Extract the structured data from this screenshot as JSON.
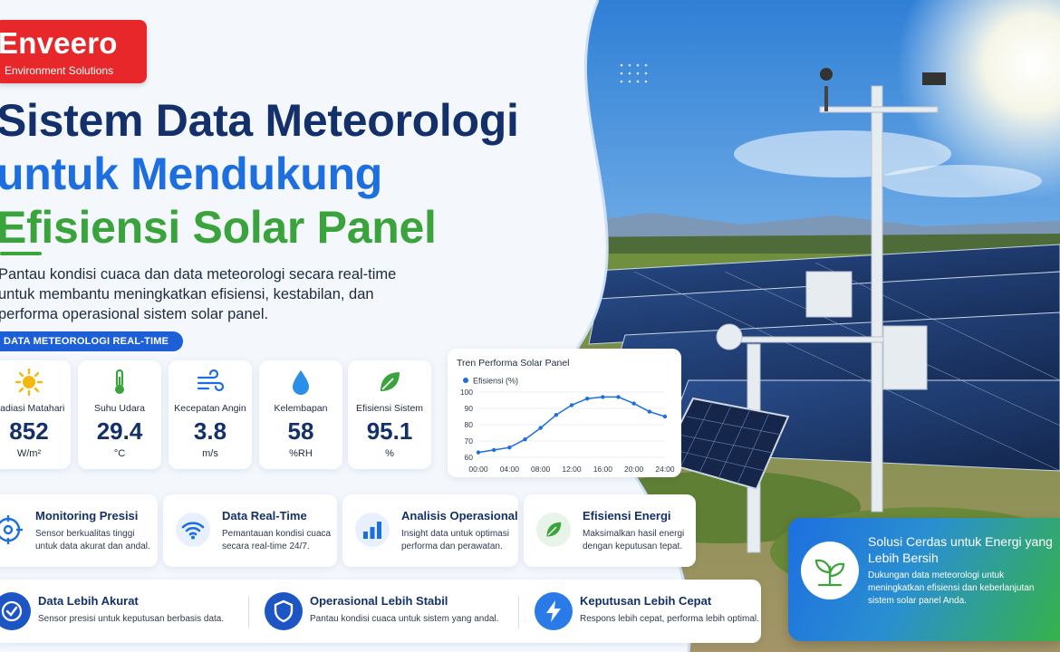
{
  "brand": {
    "name": "Enveero",
    "tagline": "Environment Solutions"
  },
  "headline": {
    "line1": "Sistem Data Meteorologi",
    "line2": "untuk Mendukung",
    "line3": "Efisiensi Solar Panel"
  },
  "description": "Pantau kondisi cuaca dan data meteorologi secara real-time untuk membantu meningkatkan efisiensi, kestabilan, dan performa operasional sistem solar panel.",
  "section_pill": "DATA METEOROLOGI REAL-TIME",
  "metrics": [
    {
      "label": "Radiasi Matahari",
      "value": "852",
      "unit": "W/m²",
      "icon": "sun-icon",
      "color": "#f5b70a"
    },
    {
      "label": "Suhu Udara",
      "value": "29.4",
      "unit": "°C",
      "icon": "thermometer-icon",
      "color": "#3aa33b"
    },
    {
      "label": "Kecepatan Angin",
      "value": "3.8",
      "unit": "m/s",
      "icon": "wind-icon",
      "color": "#1d6fe0"
    },
    {
      "label": "Kelembapan",
      "value": "58",
      "unit": "%RH",
      "icon": "droplet-icon",
      "color": "#1d8fe0"
    },
    {
      "label": "Efisiensi Sistem",
      "value": "95.1",
      "unit": "%",
      "icon": "leaf-icon",
      "color": "#3aa33b"
    }
  ],
  "chart_data": {
    "type": "line",
    "title": "Tren Performa Solar Panel",
    "legend": "Efisiensi (%)",
    "x_ticks": [
      "00:00",
      "04:00",
      "08:00",
      "12:00",
      "16:00",
      "20:00",
      "24:00"
    ],
    "y_ticks": [
      60,
      70,
      80,
      90,
      100
    ],
    "ylim": [
      60,
      100
    ],
    "xlim": [
      0,
      24
    ],
    "grid": true,
    "series": [
      {
        "color": "#1d6fe0",
        "points": [
          [
            0,
            63
          ],
          [
            2,
            64.5
          ],
          [
            4,
            66
          ],
          [
            6,
            71
          ],
          [
            8,
            78
          ],
          [
            10,
            86
          ],
          [
            12,
            92
          ],
          [
            14,
            96
          ],
          [
            16,
            97
          ],
          [
            18,
            97
          ],
          [
            20,
            93
          ],
          [
            22,
            88
          ],
          [
            24,
            85
          ]
        ]
      }
    ]
  },
  "features": [
    {
      "title": "Monitoring Presisi",
      "desc": "Sensor berkualitas tinggi untuk data akurat dan andal.",
      "icon": "target-icon"
    },
    {
      "title": "Data Real-Time",
      "desc": "Pemantauan kondisi cuaca secara real-time 24/7.",
      "icon": "wifi-icon"
    },
    {
      "title": "Analisis Operasional",
      "desc": "Insight data untuk optimasi performa dan perawatan.",
      "icon": "bar-chart-icon"
    },
    {
      "title": "Efisiensi Energi",
      "desc": "Maksimalkan hasil energi dengan keputusan tepat.",
      "icon": "leaf-icon"
    }
  ],
  "benefits": [
    {
      "title": "Data Lebih Akurat",
      "desc": "Sensor presisi untuk keputusan berbasis data.",
      "icon": "check-circle-icon"
    },
    {
      "title": "Operasional Lebih Stabil",
      "desc": "Pantau kondisi cuaca untuk sistem yang andal.",
      "icon": "shield-icon"
    },
    {
      "title": "Keputusan Lebih Cepat",
      "desc": "Respons lebih cepat, performa lebih optimal.",
      "icon": "lightning-icon"
    }
  ],
  "cta": {
    "title": "Solusi Cerdas untuk Energi yang Lebih Bersih",
    "desc": "Dukungan data meteorologi untuk meningkatkan efisiensi dan keberlanjutan sistem solar panel Anda.",
    "icon": "plant-icon"
  },
  "colors": {
    "navy": "#14306a",
    "blue": "#1d6fe0",
    "green": "#3aa33b",
    "red": "#e8272b"
  }
}
